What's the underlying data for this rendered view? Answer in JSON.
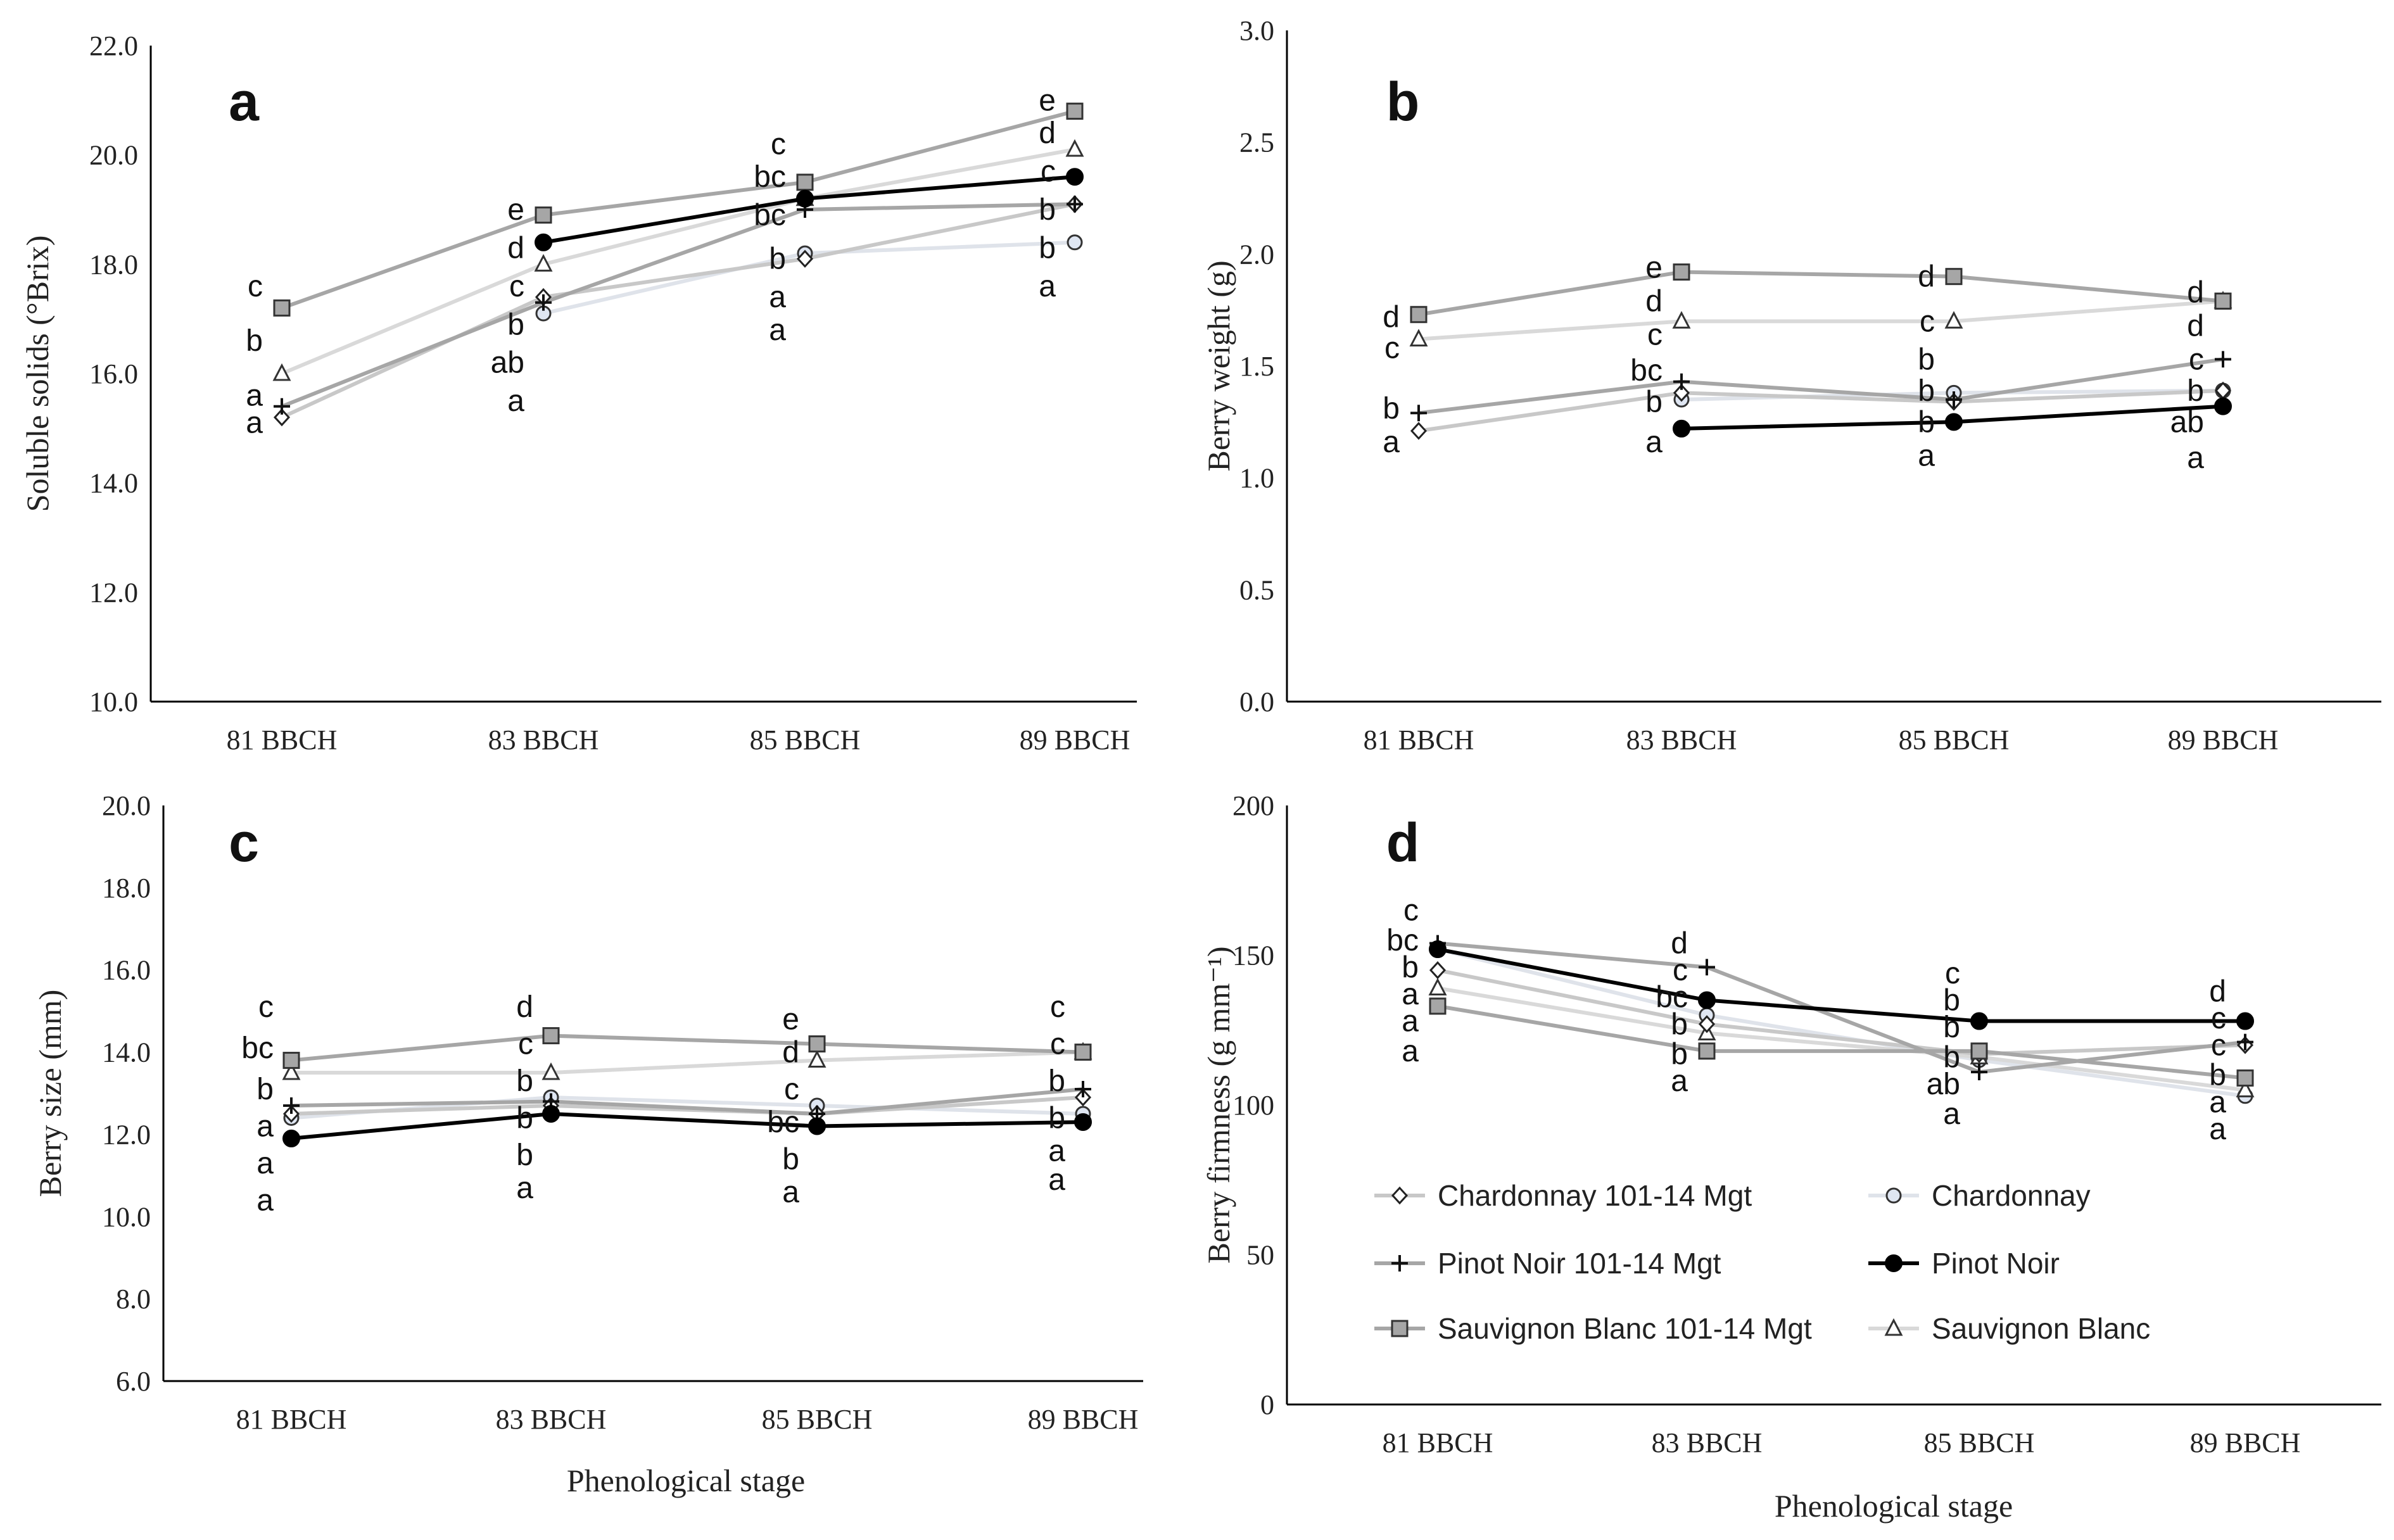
{
  "figure": {
    "shared_xlabel": "Phenological stage"
  },
  "legend": {
    "items": [
      {
        "label": "Chardonnay 101-14 Mgt",
        "series": "ch_mgt"
      },
      {
        "label": "Chardonnay",
        "series": "ch"
      },
      {
        "label": "Pinot Noir 101-14 Mgt",
        "series": "pn_mgt"
      },
      {
        "label": "Pinot Noir",
        "series": "pn"
      },
      {
        "label": "Sauvignon Blanc 101-14 Mgt",
        "series": "sb_mgt"
      },
      {
        "label": "Sauvignon Blanc",
        "series": "sb"
      }
    ]
  },
  "series_styles": {
    "ch_mgt": {
      "line": "#c8c8c8",
      "marker": "diamond",
      "fill": "#ffffff"
    },
    "ch": {
      "line": "#dfe3ea",
      "marker": "circle",
      "fill": "#dfe6f2"
    },
    "pn_mgt": {
      "line": "#a6a6a6",
      "marker": "plus",
      "fill": "#000000"
    },
    "pn": {
      "line": "#000000",
      "marker": "dot",
      "fill": "#000000"
    },
    "sb_mgt": {
      "line": "#a6a6a6",
      "marker": "square",
      "fill": "#a6a6a6"
    },
    "sb": {
      "line": "#d9d9d9",
      "marker": "triangle",
      "fill": "#ffffff"
    }
  },
  "chart_data": [
    {
      "type": "line",
      "panel": "a",
      "ylabel": "Soluble solids (°Brix)",
      "xlabel": "",
      "categories": [
        "81 BBCH",
        "83 BBCH",
        "85 BBCH",
        "89 BBCH"
      ],
      "ylim": [
        10.0,
        22.0
      ],
      "yticks": [
        "10.0",
        "12.0",
        "14.0",
        "16.0",
        "18.0",
        "20.0",
        "22.0"
      ],
      "series": [
        {
          "key": "ch_mgt",
          "name": "Chardonnay 101-14 Mgt",
          "values": [
            15.2,
            17.4,
            18.1,
            19.1
          ]
        },
        {
          "key": "ch",
          "name": "Chardonnay",
          "values": [
            null,
            17.1,
            18.2,
            18.4
          ]
        },
        {
          "key": "pn_mgt",
          "name": "Pinot Noir 101-14 Mgt",
          "values": [
            15.4,
            17.3,
            19.0,
            19.1
          ]
        },
        {
          "key": "pn",
          "name": "Pinot Noir",
          "values": [
            null,
            18.4,
            19.2,
            19.6
          ]
        },
        {
          "key": "sb_mgt",
          "name": "Sauvignon Blanc 101-14 Mgt",
          "values": [
            17.2,
            18.9,
            19.5,
            20.8
          ]
        },
        {
          "key": "sb",
          "name": "Sauvignon Blanc",
          "values": [
            16.0,
            18.0,
            19.2,
            20.1
          ]
        }
      ],
      "annotations": [
        {
          "x": 0,
          "y": 17.6,
          "text": "c"
        },
        {
          "x": 0,
          "y": 16.6,
          "text": "b"
        },
        {
          "x": 0,
          "y": 15.6,
          "text": "a"
        },
        {
          "x": 0,
          "y": 15.1,
          "text": "a"
        },
        {
          "x": 1,
          "y": 19.0,
          "text": "e"
        },
        {
          "x": 1,
          "y": 18.3,
          "text": "d"
        },
        {
          "x": 1,
          "y": 17.6,
          "text": "c"
        },
        {
          "x": 1,
          "y": 16.9,
          "text": "b"
        },
        {
          "x": 1,
          "y": 16.2,
          "text": "ab"
        },
        {
          "x": 1,
          "y": 15.5,
          "text": "a"
        },
        {
          "x": 2,
          "y": 20.2,
          "text": "c"
        },
        {
          "x": 2,
          "y": 19.6,
          "text": "bc"
        },
        {
          "x": 2,
          "y": 18.9,
          "text": "bc"
        },
        {
          "x": 2,
          "y": 18.1,
          "text": "b"
        },
        {
          "x": 2,
          "y": 17.4,
          "text": "a"
        },
        {
          "x": 2,
          "y": 16.8,
          "text": "a"
        },
        {
          "x": 3,
          "y": 21.0,
          "text": "e"
        },
        {
          "x": 3,
          "y": 20.4,
          "text": "d"
        },
        {
          "x": 3,
          "y": 19.7,
          "text": "c"
        },
        {
          "x": 3,
          "y": 19.0,
          "text": "b"
        },
        {
          "x": 3,
          "y": 18.3,
          "text": "b"
        },
        {
          "x": 3,
          "y": 17.6,
          "text": "a"
        }
      ]
    },
    {
      "type": "line",
      "panel": "b",
      "ylabel": "Berry weight (g)",
      "xlabel": "",
      "categories": [
        "81 BBCH",
        "83 BBCH",
        "85 BBCH",
        "89 BBCH"
      ],
      "ylim": [
        0.0,
        3.0
      ],
      "yticks": [
        "0.0",
        "0.5",
        "1.0",
        "1.5",
        "2.0",
        "2.5",
        "3.0"
      ],
      "series": [
        {
          "key": "ch_mgt",
          "name": "Chardonnay 101-14 Mgt",
          "values": [
            1.21,
            1.38,
            1.34,
            1.39
          ]
        },
        {
          "key": "ch",
          "name": "Chardonnay",
          "values": [
            null,
            1.35,
            1.38,
            1.39
          ]
        },
        {
          "key": "pn_mgt",
          "name": "Pinot Noir 101-14 Mgt",
          "values": [
            1.29,
            1.43,
            1.35,
            1.53
          ]
        },
        {
          "key": "pn",
          "name": "Pinot Noir",
          "values": [
            null,
            1.22,
            1.25,
            1.32
          ]
        },
        {
          "key": "sb_mgt",
          "name": "Sauvignon Blanc 101-14 Mgt",
          "values": [
            1.73,
            1.92,
            1.9,
            1.79
          ]
        },
        {
          "key": "sb",
          "name": "Sauvignon Blanc",
          "values": [
            1.62,
            1.7,
            1.7,
            1.79
          ]
        }
      ],
      "annotations": [
        {
          "x": 0,
          "y": 1.72,
          "text": "d"
        },
        {
          "x": 0,
          "y": 1.58,
          "text": "c"
        },
        {
          "x": 0,
          "y": 1.31,
          "text": "b"
        },
        {
          "x": 0,
          "y": 1.16,
          "text": "a"
        },
        {
          "x": 1,
          "y": 1.94,
          "text": "e"
        },
        {
          "x": 1,
          "y": 1.79,
          "text": "d"
        },
        {
          "x": 1,
          "y": 1.64,
          "text": "c"
        },
        {
          "x": 1,
          "y": 1.48,
          "text": "bc"
        },
        {
          "x": 1,
          "y": 1.34,
          "text": "b"
        },
        {
          "x": 1,
          "y": 1.16,
          "text": "a"
        },
        {
          "x": 2,
          "y": 1.9,
          "text": "d"
        },
        {
          "x": 2,
          "y": 1.7,
          "text": "c"
        },
        {
          "x": 2,
          "y": 1.53,
          "text": "b"
        },
        {
          "x": 2,
          "y": 1.39,
          "text": "b"
        },
        {
          "x": 2,
          "y": 1.25,
          "text": "b"
        },
        {
          "x": 2,
          "y": 1.1,
          "text": "a"
        },
        {
          "x": 3,
          "y": 1.83,
          "text": "d"
        },
        {
          "x": 3,
          "y": 1.68,
          "text": "d"
        },
        {
          "x": 3,
          "y": 1.53,
          "text": "c"
        },
        {
          "x": 3,
          "y": 1.39,
          "text": "b"
        },
        {
          "x": 3,
          "y": 1.25,
          "text": "ab"
        },
        {
          "x": 3,
          "y": 1.09,
          "text": "a"
        }
      ]
    },
    {
      "type": "line",
      "panel": "c",
      "ylabel": "Berry size (mm)",
      "xlabel": "Phenological stage",
      "categories": [
        "81 BBCH",
        "83 BBCH",
        "85 BBCH",
        "89 BBCH"
      ],
      "ylim": [
        6.0,
        20.0
      ],
      "yticks": [
        "6.0",
        "8.0",
        "10.0",
        "12.0",
        "14.0",
        "16.0",
        "18.0",
        "20.0"
      ],
      "series": [
        {
          "key": "ch_mgt",
          "name": "Chardonnay 101-14 Mgt",
          "values": [
            12.5,
            12.7,
            12.5,
            12.9
          ]
        },
        {
          "key": "ch",
          "name": "Chardonnay",
          "values": [
            12.4,
            12.9,
            12.7,
            12.5
          ]
        },
        {
          "key": "pn_mgt",
          "name": "Pinot Noir 101-14 Mgt",
          "values": [
            12.7,
            12.8,
            12.5,
            13.1
          ]
        },
        {
          "key": "pn",
          "name": "Pinot Noir",
          "values": [
            11.9,
            12.5,
            12.2,
            12.3
          ]
        },
        {
          "key": "sb_mgt",
          "name": "Sauvignon Blanc 101-14 Mgt",
          "values": [
            13.8,
            14.4,
            14.2,
            14.0
          ]
        },
        {
          "key": "sb",
          "name": "Sauvignon Blanc",
          "values": [
            13.5,
            13.5,
            13.8,
            14.0
          ]
        }
      ],
      "annotations": [
        {
          "x": 0,
          "y": 15.1,
          "text": "c"
        },
        {
          "x": 0,
          "y": 14.1,
          "text": "bc"
        },
        {
          "x": 0,
          "y": 13.1,
          "text": "b"
        },
        {
          "x": 0,
          "y": 12.2,
          "text": "a"
        },
        {
          "x": 0,
          "y": 11.3,
          "text": "a"
        },
        {
          "x": 0,
          "y": 10.4,
          "text": "a"
        },
        {
          "x": 1,
          "y": 15.1,
          "text": "d"
        },
        {
          "x": 1,
          "y": 14.2,
          "text": "c"
        },
        {
          "x": 1,
          "y": 13.3,
          "text": "b"
        },
        {
          "x": 1,
          "y": 12.4,
          "text": "b"
        },
        {
          "x": 1,
          "y": 11.5,
          "text": "b"
        },
        {
          "x": 1,
          "y": 10.7,
          "text": "a"
        },
        {
          "x": 2,
          "y": 14.8,
          "text": "e"
        },
        {
          "x": 2,
          "y": 14.0,
          "text": "d"
        },
        {
          "x": 2,
          "y": 13.1,
          "text": "c"
        },
        {
          "x": 2,
          "y": 12.3,
          "text": "bc"
        },
        {
          "x": 2,
          "y": 11.4,
          "text": "b"
        },
        {
          "x": 2,
          "y": 10.6,
          "text": "a"
        },
        {
          "x": 3,
          "y": 15.1,
          "text": "c"
        },
        {
          "x": 3,
          "y": 14.2,
          "text": "c"
        },
        {
          "x": 3,
          "y": 13.3,
          "text": "b"
        },
        {
          "x": 3,
          "y": 12.4,
          "text": "b"
        },
        {
          "x": 3,
          "y": 11.6,
          "text": "a"
        },
        {
          "x": 3,
          "y": 10.9,
          "text": "a"
        }
      ]
    },
    {
      "type": "line",
      "panel": "d",
      "ylabel": "Berry firmness (g mm⁻¹)",
      "xlabel": "Phenological stage",
      "categories": [
        "81 BBCH",
        "83 BBCH",
        "85 BBCH",
        "89 BBCH"
      ],
      "ylim": [
        0,
        200
      ],
      "yticks": [
        "0",
        "50",
        "100",
        "150",
        "200"
      ],
      "series": [
        {
          "key": "ch_mgt",
          "name": "Chardonnay 101-14 Mgt",
          "values": [
            145,
            127,
            117,
            120
          ]
        },
        {
          "key": "ch",
          "name": "Chardonnay",
          "values": [
            152,
            130,
            115,
            103
          ]
        },
        {
          "key": "pn_mgt",
          "name": "Pinot Noir 101-14 Mgt",
          "values": [
            154,
            146,
            111,
            121
          ]
        },
        {
          "key": "pn",
          "name": "Pinot Noir",
          "values": [
            152,
            135,
            128,
            128
          ]
        },
        {
          "key": "sb_mgt",
          "name": "Sauvignon Blanc 101-14 Mgt",
          "values": [
            133,
            118,
            118,
            109
          ]
        },
        {
          "key": "sb",
          "name": "Sauvignon Blanc",
          "values": [
            139,
            124,
            116,
            105
          ]
        }
      ],
      "annotations": [
        {
          "x": 0,
          "y": 165,
          "text": "c"
        },
        {
          "x": 0,
          "y": 155,
          "text": "bc"
        },
        {
          "x": 0,
          "y": 146,
          "text": "b"
        },
        {
          "x": 0,
          "y": 137,
          "text": "a"
        },
        {
          "x": 0,
          "y": 128,
          "text": "a"
        },
        {
          "x": 0,
          "y": 118,
          "text": "a"
        },
        {
          "x": 1,
          "y": 154,
          "text": "d"
        },
        {
          "x": 1,
          "y": 145,
          "text": "c"
        },
        {
          "x": 1,
          "y": 136,
          "text": "bc"
        },
        {
          "x": 1,
          "y": 127,
          "text": "b"
        },
        {
          "x": 1,
          "y": 117,
          "text": "b"
        },
        {
          "x": 1,
          "y": 108,
          "text": "a"
        },
        {
          "x": 2,
          "y": 144,
          "text": "c"
        },
        {
          "x": 2,
          "y": 135,
          "text": "b"
        },
        {
          "x": 2,
          "y": 126,
          "text": "b"
        },
        {
          "x": 2,
          "y": 116,
          "text": "b"
        },
        {
          "x": 2,
          "y": 107,
          "text": "ab"
        },
        {
          "x": 2,
          "y": 97,
          "text": "a"
        },
        {
          "x": 3,
          "y": 138,
          "text": "d"
        },
        {
          "x": 3,
          "y": 129,
          "text": "c"
        },
        {
          "x": 3,
          "y": 120,
          "text": "c"
        },
        {
          "x": 3,
          "y": 110,
          "text": "b"
        },
        {
          "x": 3,
          "y": 101,
          "text": "a"
        },
        {
          "x": 3,
          "y": 92,
          "text": "a"
        }
      ]
    }
  ]
}
